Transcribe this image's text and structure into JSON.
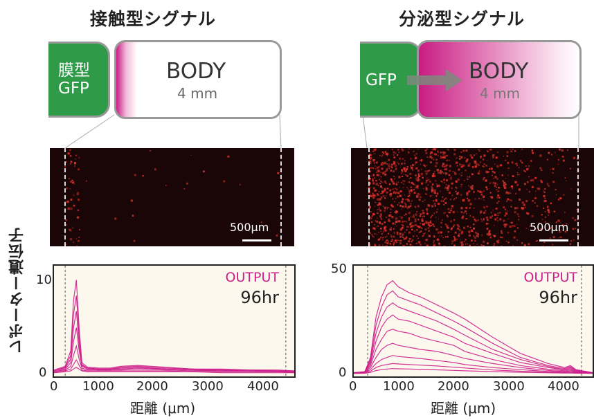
{
  "panels": {
    "left": {
      "title": "接触型シグナル",
      "source_label": "膜型\nGFP",
      "body_title": "BODY",
      "body_length": "4 mm",
      "scale_label": "500μm",
      "output_label": "OUTPUT",
      "time_label": "96hr",
      "y_ticks": [
        "0",
        "10"
      ],
      "x_ticks": [
        "0",
        "1000",
        "2000",
        "3000",
        "4000"
      ],
      "xlabel": "距離 (μm)"
    },
    "right": {
      "title": "分泌型シグナル",
      "source_label": "GFP",
      "body_title": "BODY",
      "body_length": "4 mm",
      "scale_label": "500μm",
      "output_label": "OUTPUT",
      "time_label": "96hr",
      "y_ticks": [
        "0",
        "50"
      ],
      "x_ticks": [
        "0",
        "1000",
        "2000",
        "3000",
        "4000"
      ],
      "xlabel": "距離 (μm)"
    }
  },
  "shared_ylabel": "レポーター遺伝子",
  "colors": {
    "trace": "#cc1e8a",
    "green": "#2f9a48",
    "plot_bg": "#fdf8ee",
    "micro_bg": "#1a0606",
    "cell_red": "#d8302a"
  },
  "chart_data": [
    {
      "type": "line",
      "x": [
        0,
        200,
        300,
        350,
        400,
        450,
        500,
        600,
        800,
        1000,
        1200,
        1500,
        2000,
        2500,
        3000,
        3500,
        4000,
        4300
      ],
      "series": [
        {
          "values": [
            0.4,
            0.8,
            2.5,
            8.0,
            10.2,
            5.0,
            1.2,
            0.7,
            0.6,
            0.6,
            0.8,
            0.9,
            0.7,
            0.5,
            0.5,
            0.4,
            0.4,
            0.3
          ]
        },
        {
          "values": [
            0.3,
            0.7,
            2.0,
            6.5,
            8.5,
            4.0,
            1.0,
            0.6,
            0.5,
            0.5,
            0.7,
            0.8,
            0.6,
            0.5,
            0.4,
            0.4,
            0.3,
            0.3
          ]
        },
        {
          "values": [
            0.3,
            0.6,
            1.6,
            5.0,
            6.8,
            3.2,
            0.9,
            0.6,
            0.5,
            0.5,
            0.6,
            0.7,
            0.5,
            0.4,
            0.4,
            0.3,
            0.3,
            0.2
          ]
        },
        {
          "values": [
            0.2,
            0.5,
            1.2,
            3.5,
            5.0,
            2.5,
            0.8,
            0.5,
            0.4,
            0.4,
            0.5,
            0.6,
            0.5,
            0.4,
            0.3,
            0.3,
            0.3,
            0.2
          ]
        },
        {
          "values": [
            0.2,
            0.4,
            0.8,
            2.0,
            3.0,
            1.6,
            0.6,
            0.4,
            0.4,
            0.4,
            0.4,
            0.5,
            0.4,
            0.3,
            0.3,
            0.3,
            0.2,
            0.2
          ]
        },
        {
          "values": [
            0.1,
            0.3,
            0.5,
            1.0,
            1.5,
            0.9,
            0.4,
            0.3,
            0.3,
            0.3,
            0.3,
            0.3,
            0.3,
            0.2,
            0.2,
            0.2,
            0.2,
            0.1
          ]
        },
        {
          "values": [
            0.1,
            0.2,
            0.3,
            0.5,
            0.7,
            0.5,
            0.3,
            0.2,
            0.2,
            0.2,
            0.2,
            0.2,
            0.2,
            0.2,
            0.1,
            0.1,
            0.1,
            0.1
          ]
        }
      ],
      "xlim": [
        0,
        4300
      ],
      "ylim": [
        0,
        11
      ],
      "xlabel": "距離 (μm)",
      "ylabel": "レポーター遺伝子"
    },
    {
      "type": "line",
      "x": [
        0,
        200,
        300,
        400,
        500,
        600,
        700,
        800,
        1000,
        1200,
        1500,
        1800,
        2000,
        2500,
        3000,
        3500,
        3800,
        3900,
        4000,
        4300
      ],
      "series": [
        {
          "values": [
            0.5,
            1.0,
            8,
            28,
            38,
            44,
            46,
            43,
            40,
            38,
            34,
            30,
            27,
            18,
            10,
            5,
            3,
            4,
            2,
            0.5
          ]
        },
        {
          "values": [
            0.4,
            0.9,
            7,
            24,
            33,
            39,
            41,
            38,
            36,
            34,
            30,
            26,
            23,
            15,
            8,
            4,
            2.5,
            3.5,
            1.8,
            0.4
          ]
        },
        {
          "values": [
            0.4,
            0.8,
            6,
            20,
            28,
            33,
            35,
            33,
            31,
            29,
            26,
            22,
            19,
            12,
            7,
            3.5,
            2,
            3,
            1.5,
            0.4
          ]
        },
        {
          "values": [
            0.3,
            0.7,
            5,
            16,
            23,
            27,
            29,
            27,
            26,
            24,
            21,
            18,
            15,
            10,
            5.5,
            3,
            1.8,
            2.5,
            1.3,
            0.3
          ]
        },
        {
          "values": [
            0.3,
            0.6,
            4,
            12,
            17,
            21,
            22,
            21,
            20,
            18,
            16,
            14,
            11,
            7,
            4,
            2.2,
            1.4,
            2,
            1.0,
            0.3
          ]
        },
        {
          "values": [
            0.2,
            0.5,
            3,
            8,
            12,
            14,
            15,
            14,
            13,
            12,
            11,
            9,
            7.5,
            5,
            3,
            1.6,
            1.0,
            1.5,
            0.8,
            0.2
          ]
        },
        {
          "values": [
            0.2,
            0.4,
            2,
            5,
            7,
            8,
            9,
            8.5,
            8,
            7.5,
            6.5,
            5.5,
            4.5,
            3,
            2,
            1.1,
            0.8,
            1.0,
            0.6,
            0.2
          ]
        },
        {
          "values": [
            0.1,
            0.3,
            1.2,
            3,
            4,
            4.5,
            5,
            4.8,
            4.5,
            4.2,
            3.8,
            3.2,
            2.8,
            1.8,
            1.2,
            0.7,
            0.5,
            0.6,
            0.4,
            0.1
          ]
        },
        {
          "values": [
            0.1,
            0.2,
            0.6,
            1.5,
            2,
            2.3,
            2.5,
            2.4,
            2.3,
            2.1,
            1.9,
            1.6,
            1.4,
            1.0,
            0.7,
            0.4,
            0.3,
            0.3,
            0.2,
            0.1
          ]
        }
      ],
      "xlim": [
        0,
        4300
      ],
      "ylim": [
        0,
        50
      ],
      "xlabel": "距離 (μm)",
      "ylabel": "レポーター遺伝子"
    }
  ]
}
